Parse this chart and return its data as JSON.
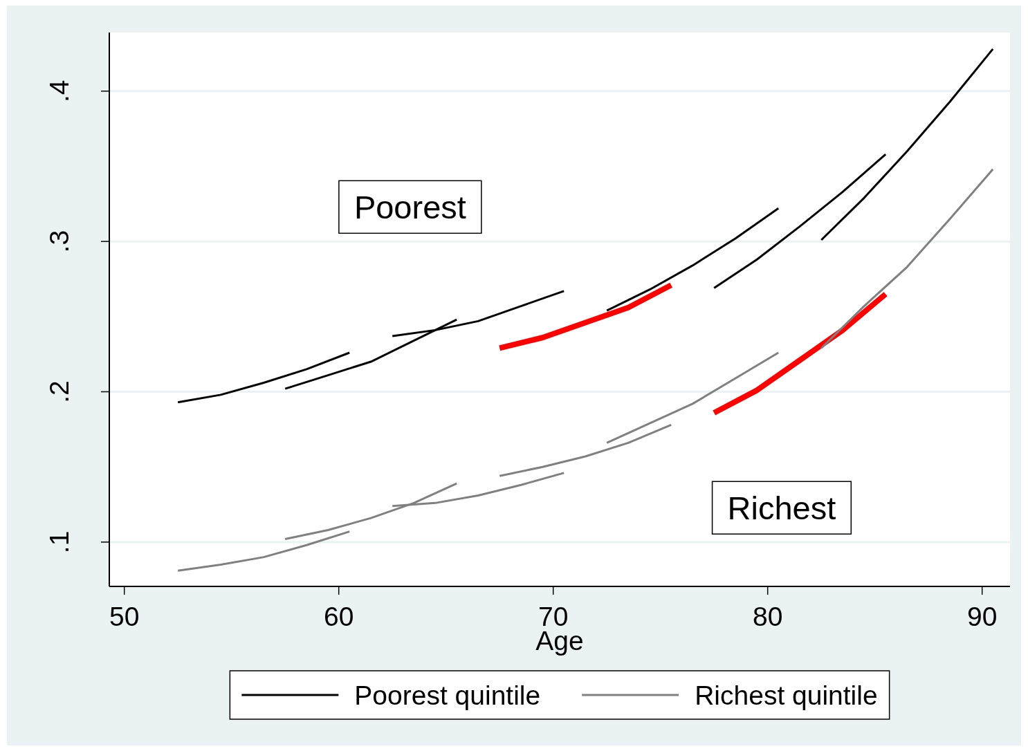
{
  "chart_data": {
    "type": "line",
    "xlabel": "Age",
    "xlim": [
      49.3,
      91.3
    ],
    "xticks": [
      50,
      60,
      70,
      80,
      90
    ],
    "ylim": [
      0.0705,
      0.439
    ],
    "yticks": [
      {
        "value": 0.1,
        "label": ".1"
      },
      {
        "value": 0.2,
        "label": ".2"
      },
      {
        "value": 0.3,
        "label": ".3"
      },
      {
        "value": 0.4,
        "label": ".4"
      }
    ],
    "grid": "y",
    "legend": "bottom",
    "annotations": [
      "Poorest",
      "Richest"
    ],
    "series": [
      {
        "color": "#ff0000",
        "x": [
          67.5,
          69.5,
          71.5,
          73.5,
          75.5
        ],
        "values": [
          0.229,
          0.236,
          0.246,
          0.256,
          0.271
        ]
      },
      {
        "color": "#ff0000",
        "x": [
          77.5,
          79.5,
          81.5,
          83.5,
          85.5
        ],
        "values": [
          0.186,
          0.201,
          0.221,
          0.241,
          0.265
        ]
      },
      {
        "name": "Poorest quintile",
        "color": "#000000",
        "x": [
          52.5,
          54.5,
          56.5,
          58.5,
          60.5
        ],
        "values": [
          0.193,
          0.198,
          0.206,
          0.215,
          0.226
        ]
      },
      {
        "color": "#000000",
        "x": [
          57.5,
          59.5,
          61.5,
          63.5,
          65.5
        ],
        "values": [
          0.202,
          0.211,
          0.22,
          0.234,
          0.248
        ]
      },
      {
        "color": "#000000",
        "x": [
          62.5,
          64.5,
          66.5,
          68.5,
          70.5
        ],
        "values": [
          0.237,
          0.241,
          0.247,
          0.257,
          0.267
        ]
      },
      {
        "color": "#000000",
        "x": [
          72.5,
          74.5,
          76.5,
          78.5,
          80.5
        ],
        "values": [
          0.254,
          0.268,
          0.284,
          0.302,
          0.322
        ]
      },
      {
        "color": "#000000",
        "x": [
          77.5,
          79.5,
          81.5,
          83.5,
          85.5
        ],
        "values": [
          0.269,
          0.288,
          0.31,
          0.333,
          0.358
        ]
      },
      {
        "color": "#000000",
        "x": [
          82.5,
          84.5,
          86.5,
          88.5,
          90.5
        ],
        "values": [
          0.301,
          0.329,
          0.36,
          0.393,
          0.428
        ]
      },
      {
        "name": "Richest quintile",
        "color": "#808080",
        "x": [
          52.5,
          54.5,
          56.5,
          58.5,
          60.5
        ],
        "values": [
          0.081,
          0.085,
          0.09,
          0.098,
          0.107
        ]
      },
      {
        "color": "#808080",
        "x": [
          57.5,
          59.5,
          61.5,
          63.5,
          65.5
        ],
        "values": [
          0.102,
          0.108,
          0.116,
          0.126,
          0.139
        ]
      },
      {
        "color": "#808080",
        "x": [
          62.5,
          64.5,
          66.5,
          68.5,
          70.5
        ],
        "values": [
          0.124,
          0.126,
          0.131,
          0.138,
          0.146
        ]
      },
      {
        "color": "#808080",
        "x": [
          67.5,
          69.5,
          71.5,
          73.5,
          75.5
        ],
        "values": [
          0.144,
          0.15,
          0.157,
          0.166,
          0.178
        ]
      },
      {
        "color": "#808080",
        "x": [
          72.5,
          74.5,
          76.5,
          78.5,
          80.5
        ],
        "values": [
          0.166,
          0.179,
          0.192,
          0.209,
          0.226
        ]
      },
      {
        "color": "#808080",
        "x": [
          82.5,
          84.5,
          86.5,
          88.5,
          90.5
        ],
        "values": [
          0.229,
          0.257,
          0.283,
          0.315,
          0.348
        ]
      }
    ]
  }
}
